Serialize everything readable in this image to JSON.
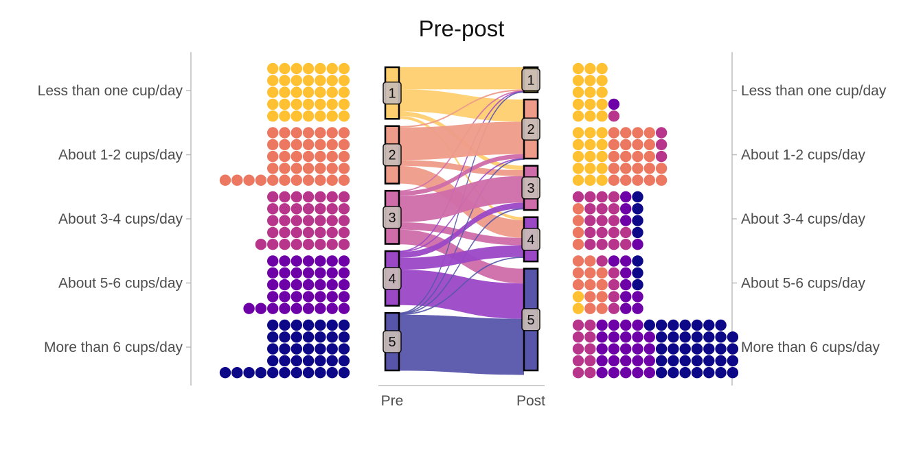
{
  "chart_data": {
    "type": "alluvial",
    "title": "Pre-post",
    "axes": [
      "Pre",
      "Post"
    ],
    "categories": [
      "Less than one cup/day",
      "About 1-2 cups/day",
      "About 3-4 cups/day",
      "About 5-6 cups/day",
      "More than 6 cups/day"
    ],
    "node_labels": [
      "1",
      "2",
      "3",
      "4",
      "5"
    ],
    "colors": [
      "#FFC132",
      "#EC7862",
      "#B8358C",
      "#6E00A8",
      "#0D0887"
    ],
    "flow_colors": [
      "#FFCF6F",
      "#EE9B89",
      "#CF6DAA",
      "#9B48C6",
      "#5755AA"
    ],
    "pre_totals": [
      35,
      39,
      36,
      37,
      39
    ],
    "post_totals": [
      17,
      40,
      30,
      30,
      69
    ],
    "flows": [
      {
        "from": 1,
        "to": 1,
        "value": 15
      },
      {
        "from": 1,
        "to": 2,
        "value": 15
      },
      {
        "from": 1,
        "to": 3,
        "value": 3
      },
      {
        "from": 1,
        "to": 4,
        "value": 2
      },
      {
        "from": 2,
        "to": 1,
        "value": 1
      },
      {
        "from": 2,
        "to": 2,
        "value": 22
      },
      {
        "from": 2,
        "to": 3,
        "value": 4
      },
      {
        "from": 2,
        "to": 4,
        "value": 12
      },
      {
        "from": 3,
        "to": 1,
        "value": 0.3
      },
      {
        "from": 3,
        "to": 2,
        "value": 3
      },
      {
        "from": 3,
        "to": 3,
        "value": 18
      },
      {
        "from": 3,
        "to": 4,
        "value": 5
      },
      {
        "from": 3,
        "to": 5,
        "value": 10
      },
      {
        "from": 4,
        "to": 1,
        "value": 0.3
      },
      {
        "from": 4,
        "to": 2,
        "value": 0.3
      },
      {
        "from": 4,
        "to": 3,
        "value": 4
      },
      {
        "from": 4,
        "to": 4,
        "value": 8
      },
      {
        "from": 4,
        "to": 5,
        "value": 24
      },
      {
        "from": 5,
        "to": 1,
        "value": 0.3
      },
      {
        "from": 5,
        "to": 2,
        "value": 0.3
      },
      {
        "from": 5,
        "to": 3,
        "value": 0.3
      },
      {
        "from": 5,
        "to": 4,
        "value": 0.3
      },
      {
        "from": 5,
        "to": 5,
        "value": 38
      }
    ],
    "post_dot_composition": [
      [
        {
          "from": 1,
          "count": 15
        },
        {
          "from": 3,
          "count": 1
        },
        {
          "from": 4,
          "count": 1
        }
      ],
      [
        {
          "from": 1,
          "count": 15
        },
        {
          "from": 2,
          "count": 22
        },
        {
          "from": 3,
          "count": 3
        }
      ],
      [
        {
          "from": 2,
          "count": 4
        },
        {
          "from": 3,
          "count": 18
        },
        {
          "from": 4,
          "count": 4
        },
        {
          "from": 5,
          "count": 4
        }
      ],
      [
        {
          "from": 1,
          "count": 2
        },
        {
          "from": 2,
          "count": 12
        },
        {
          "from": 3,
          "count": 5
        },
        {
          "from": 4,
          "count": 8
        },
        {
          "from": 5,
          "count": 3
        }
      ],
      [
        {
          "from": 3,
          "count": 10
        },
        {
          "from": 4,
          "count": 24
        },
        {
          "from": 5,
          "count": 35
        }
      ]
    ]
  }
}
